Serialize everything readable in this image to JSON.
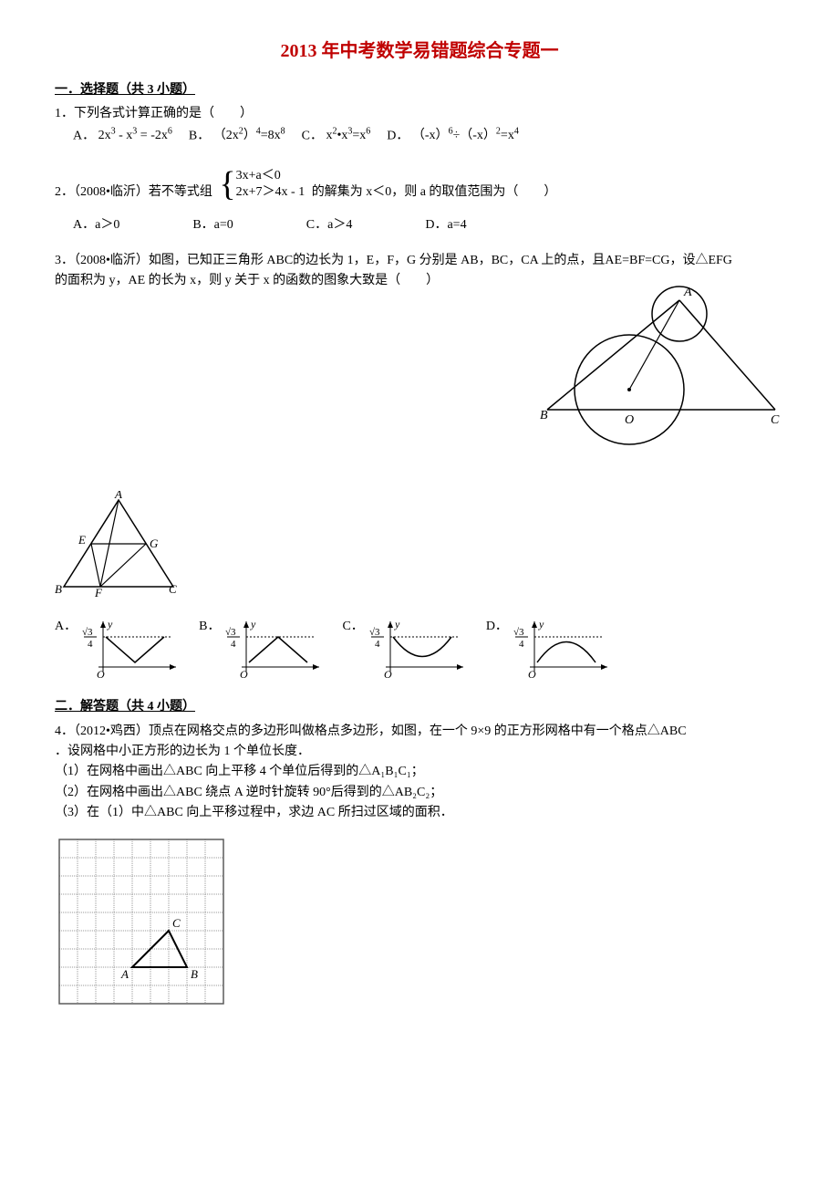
{
  "title": "2013 年中考数学易错题综合专题一",
  "section1": {
    "heading": "一．选择题（共 3 小题）",
    "q1": {
      "stem": "1．下列各式计算正确的是（　　）",
      "optA_label": "A．",
      "optA_html": "2x<sup>3</sup> - x<sup>3</sup> = -2x<sup>6</sup>",
      "optB_label": "B．",
      "optB_html": "（2x<sup>2</sup>）<sup>4</sup>=8x<sup>8</sup>",
      "optC_label": "C．",
      "optC_html": "x<sup>2</sup>•x<sup>3</sup>=x<sup>6</sup>",
      "optD_label": "D．",
      "optD_html": "（-x）<sup>6</sup>÷（-x）<sup>2</sup>=x<sup>4</sup>"
    },
    "q2": {
      "stem_before": "2．（2008•临沂）若不等式组",
      "sys_line1": "3x+a＜0",
      "sys_line2": "2x+7＞4x - 1",
      "stem_after": "的解集为 x＜0，则 a 的取值范围为（　　）",
      "optA": "A．a＞0",
      "optB": "B．a=0",
      "optC": "C．a＞4",
      "optD": "D．a=4"
    },
    "q3": {
      "line1": "3．（2008•临沂）如图，已知正三角形 ABC的边长为 1，E，F，G 分别是 AB，BC，CA 上的点，且AE=BF=CG，设△EFG",
      "line2": "的面积为 y，AE 的长为 x，则 y 关于 x 的函数的图象大致是（　　）",
      "optA": "A．",
      "optB": "B．",
      "optC": "C．",
      "optD": "D．",
      "axis_y_top": "√3",
      "axis_y_bot": "4",
      "axis_ylabel": "y",
      "axis_xlabel": "O",
      "fig_right": {
        "A": "A",
        "B": "B",
        "C": "C",
        "O": "O"
      },
      "fig_efg": {
        "A": "A",
        "B": "B",
        "C": "C",
        "E": "E",
        "F": "F",
        "G": "G"
      }
    }
  },
  "section2": {
    "heading": "二．解答题（共 4 小题）",
    "q4": {
      "stem1": "4．（2012•鸡西）顶点在网格交点的多边形叫做格点多边形，如图，在一个 9×9 的正方形网格中有一个格点△ABC",
      "stem2": "．设网格中小正方形的边长为 1 个单位长度．",
      "sub1": "（1）在网格中画出△ABC 向上平移 4 个单位后得到的△A₁B₁C₁；",
      "sub2": "（2）在网格中画出△ABC 绕点 A 逆时针旋转 90°后得到的△AB₂C₂；",
      "sub3": "（3）在（1）中△ABC 向上平移过程中，求边 AC 所扫过区域的面积．",
      "grid": {
        "A": "A",
        "B": "B",
        "C": "C",
        "cols": 9,
        "rows": 9,
        "tri_pts": [
          [
            4,
            7
          ],
          [
            7,
            7
          ],
          [
            6,
            5
          ]
        ]
      }
    }
  },
  "colors": {
    "title": "#c00000",
    "text": "#000000",
    "grid_line": "#9a9a9a",
    "grid_border": "#5b5b5b",
    "tri_stroke": "#000000",
    "tri_stroke_width": 2
  }
}
